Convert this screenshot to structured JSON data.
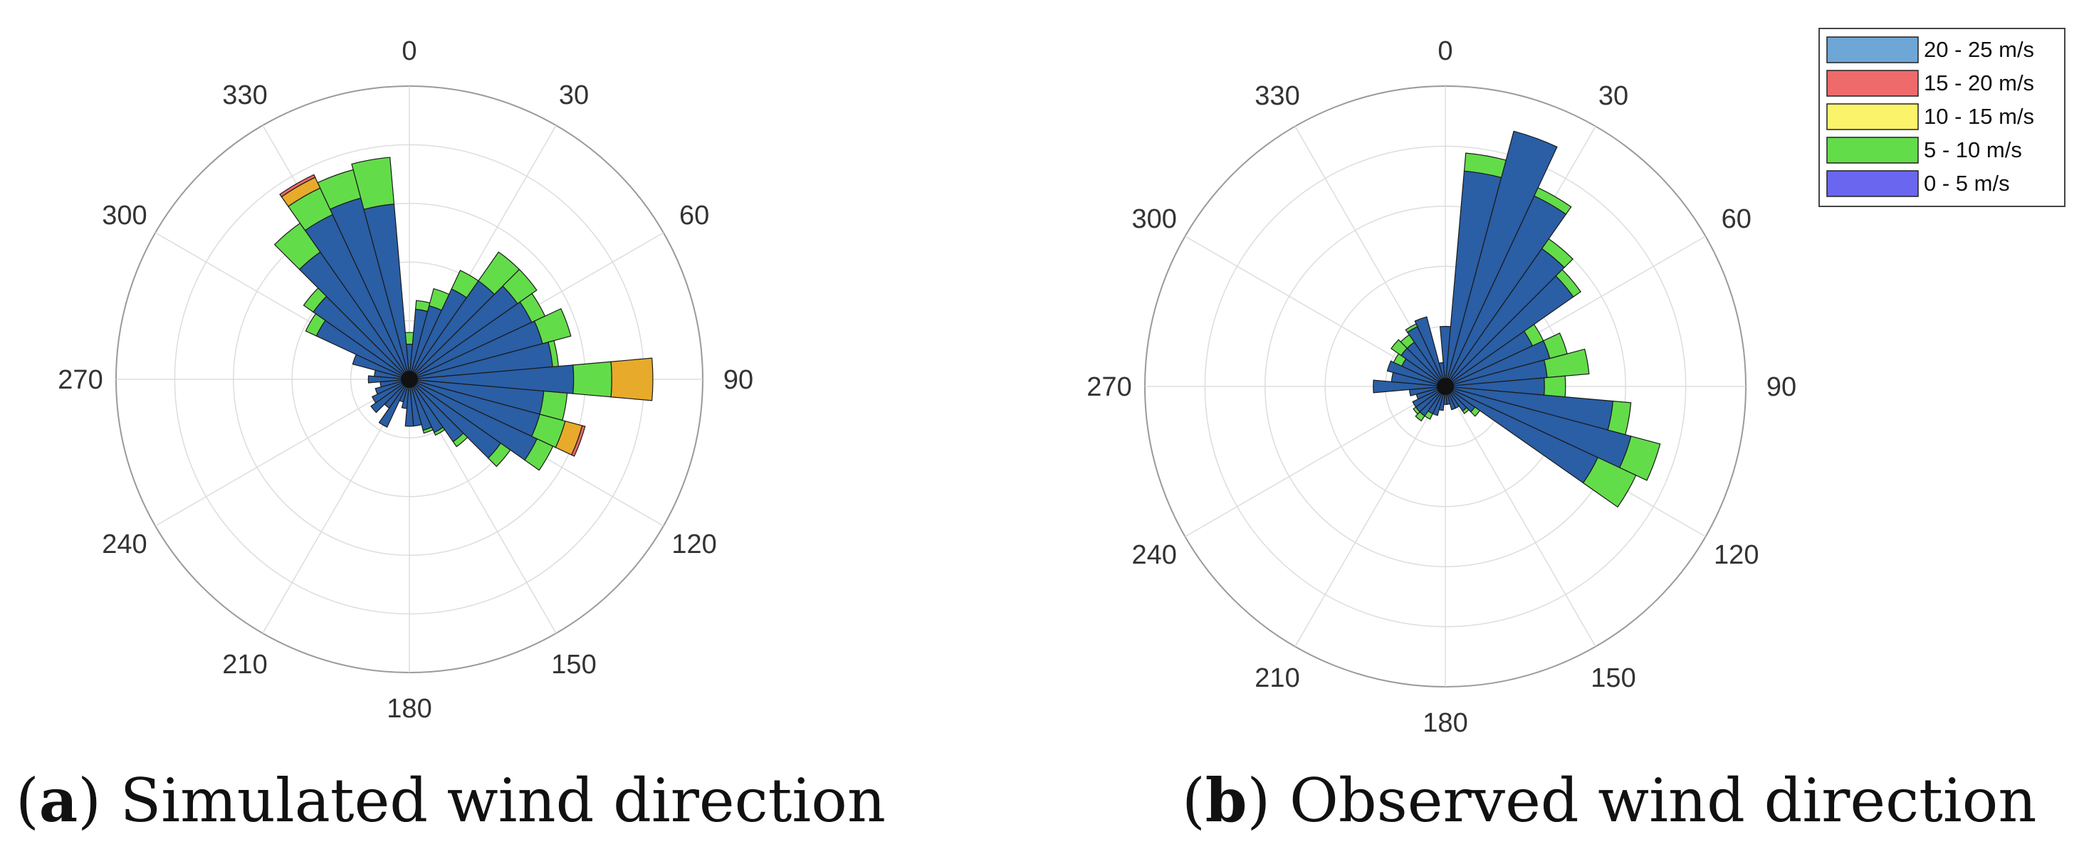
{
  "figure": {
    "captions": [
      {
        "letter": "a",
        "text": "Simulated wind direction"
      },
      {
        "letter": "b",
        "text": "Observed wind direction"
      }
    ]
  },
  "colors": {
    "bin_20_25": "#6ea6d6",
    "bin_15_20": "#ef6a6a",
    "bin_10_15": "#e8aa2a",
    "bin_5_10": "#63dc4a",
    "bin_0_5": "#2a5ea5",
    "legend_0_5": "#6a66f0",
    "legend_10_15": "#fbf36a"
  },
  "chart_data": [
    {
      "type": "polar-stacked-bar",
      "id": "simulated",
      "title": "Simulated wind direction",
      "angle_ticks": [
        "0",
        "30",
        "60",
        "90",
        "120",
        "150",
        "180",
        "210",
        "240",
        "270",
        "300",
        "330"
      ],
      "radial_rings": 5,
      "r_max": 100,
      "speed_bins": [
        "0 - 5 m/s",
        "5 - 10 m/s",
        "10 - 15 m/s",
        "15 - 20 m/s",
        "20 - 25 m/s"
      ],
      "directions_deg": [
        0,
        10,
        20,
        30,
        40,
        50,
        60,
        70,
        80,
        90,
        100,
        110,
        120,
        130,
        140,
        150,
        160,
        170,
        180,
        190,
        200,
        210,
        220,
        230,
        240,
        250,
        260,
        270,
        280,
        290,
        300,
        310,
        320,
        330,
        340,
        350
      ],
      "series": [
        {
          "name": "0 - 5 m/s",
          "values": [
            12,
            24,
            26,
            34,
            41,
            45,
            46,
            47,
            49,
            56,
            46,
            46,
            48,
            38,
            26,
            20,
            18,
            16,
            16,
            10,
            8,
            18,
            12,
            16,
            14,
            12,
            10,
            14,
            12,
            20,
            35,
            40,
            53,
            62,
            64,
            60
          ]
        },
        {
          "name": "5 - 10 m/s",
          "values": [
            4,
            3,
            6,
            7,
            12,
            8,
            5,
            10,
            2,
            13,
            8,
            9,
            6,
            4,
            2,
            1,
            1,
            0,
            0,
            0,
            0,
            0,
            0,
            0,
            0,
            0,
            0,
            0,
            0,
            0,
            4,
            4,
            12,
            10,
            10,
            16
          ]
        },
        {
          "name": "10 - 15 m/s",
          "values": [
            0,
            0,
            0,
            0,
            0,
            0,
            0,
            0,
            0,
            14,
            0,
            6,
            0,
            0,
            0,
            0,
            0,
            0,
            0,
            0,
            0,
            0,
            0,
            0,
            0,
            0,
            0,
            0,
            0,
            0,
            0,
            0,
            0,
            4,
            0,
            0
          ]
        },
        {
          "name": "15 - 20 m/s",
          "values": [
            0,
            0,
            0,
            0,
            0,
            0,
            0,
            0,
            0,
            0,
            0,
            1,
            0,
            0,
            0,
            0,
            0,
            0,
            0,
            0,
            0,
            0,
            0,
            0,
            0,
            0,
            0,
            0,
            0,
            0,
            0,
            0,
            0,
            1,
            0,
            0
          ]
        },
        {
          "name": "20 - 25 m/s",
          "values": [
            0,
            0,
            0,
            0,
            0,
            0,
            0,
            0,
            0,
            0,
            0,
            0,
            0,
            0,
            0,
            0,
            0,
            0,
            0,
            0,
            0,
            0,
            0,
            0,
            0,
            0,
            0,
            0,
            0,
            0,
            0,
            0,
            0,
            0,
            0,
            0
          ]
        }
      ]
    },
    {
      "type": "polar-stacked-bar",
      "id": "observed",
      "title": "Observed wind direction",
      "angle_ticks": [
        "0",
        "30",
        "60",
        "90",
        "120",
        "150",
        "180",
        "210",
        "240",
        "270",
        "300",
        "330"
      ],
      "radial_rings": 5,
      "r_max": 100,
      "speed_bins": [
        "0 - 5 m/s",
        "5 - 10 m/s",
        "10 - 15 m/s",
        "15 - 20 m/s",
        "20 - 25 m/s"
      ],
      "directions_deg": [
        0,
        10,
        20,
        30,
        40,
        50,
        60,
        70,
        80,
        90,
        100,
        110,
        120,
        130,
        140,
        150,
        160,
        170,
        180,
        190,
        200,
        210,
        220,
        230,
        240,
        250,
        260,
        270,
        280,
        290,
        300,
        310,
        320,
        330,
        340,
        350
      ],
      "series": [
        {
          "name": "0 - 5 m/s",
          "values": [
            20,
            72,
            88,
            70,
            56,
            52,
            32,
            36,
            34,
            33,
            56,
            64,
            56,
            12,
            10,
            8,
            8,
            6,
            6,
            8,
            10,
            10,
            12,
            12,
            12,
            10,
            12,
            24,
            18,
            20,
            16,
            18,
            18,
            22,
            24,
            8
          ]
        },
        {
          "name": "5 - 10 m/s",
          "values": [
            0,
            6,
            0,
            3,
            4,
            3,
            4,
            6,
            14,
            7,
            6,
            10,
            14,
            2,
            1,
            0,
            0,
            0,
            0,
            0,
            0,
            2,
            2,
            1,
            0,
            0,
            0,
            0,
            0,
            0,
            3,
            4,
            3,
            1,
            0,
            0
          ]
        },
        {
          "name": "10 - 15 m/s",
          "values": [
            0,
            0,
            0,
            0,
            0,
            0,
            0,
            0,
            0,
            0,
            0,
            0,
            0,
            0,
            0,
            0,
            0,
            0,
            0,
            0,
            0,
            0,
            0,
            0,
            0,
            0,
            0,
            0,
            0,
            0,
            0,
            0,
            0,
            0,
            0,
            0
          ]
        },
        {
          "name": "15 - 20 m/s",
          "values": [
            0,
            0,
            0,
            0,
            0,
            0,
            0,
            0,
            0,
            0,
            0,
            0,
            0,
            0,
            0,
            0,
            0,
            0,
            0,
            0,
            0,
            0,
            0,
            0,
            0,
            0,
            0,
            0,
            0,
            0,
            0,
            0,
            0,
            0,
            0,
            0
          ]
        },
        {
          "name": "20 - 25 m/s",
          "values": [
            0,
            0,
            0,
            0,
            0,
            0,
            0,
            0,
            0,
            0,
            0,
            0,
            0,
            0,
            0,
            0,
            0,
            0,
            0,
            0,
            0,
            0,
            0,
            0,
            0,
            0,
            0,
            0,
            0,
            0,
            0,
            0,
            0,
            0,
            0,
            0
          ]
        }
      ],
      "legend": [
        "20 - 25 m/s",
        "15 - 20 m/s",
        "10 - 15 m/s",
        "5 - 10 m/s",
        "0 - 5 m/s"
      ]
    }
  ]
}
